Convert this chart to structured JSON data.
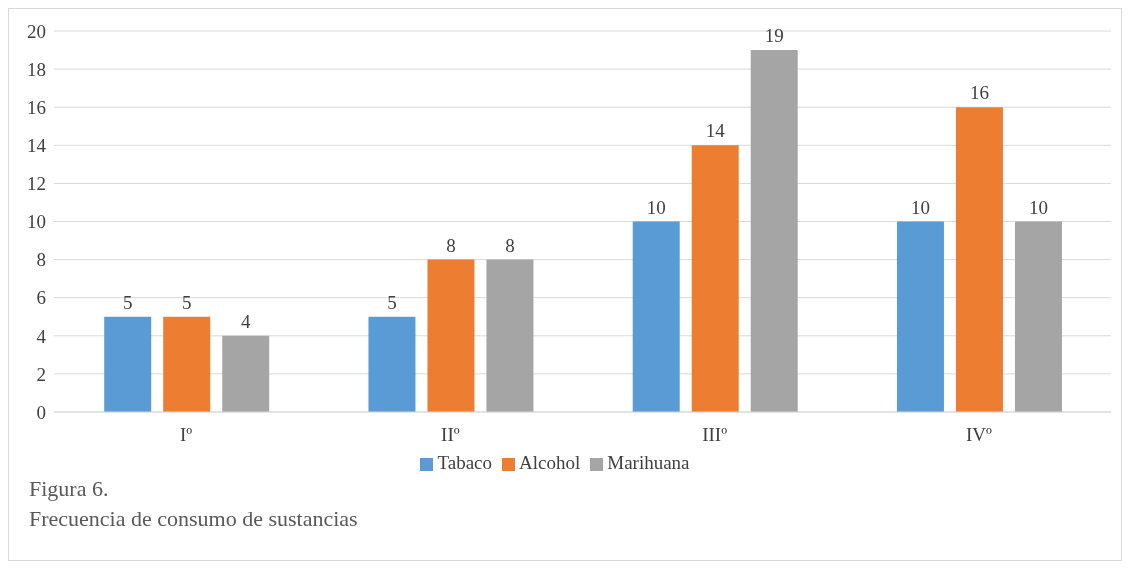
{
  "chart_data": {
    "type": "bar",
    "categories": [
      "Iº",
      "IIº",
      "IIIº",
      "IVº"
    ],
    "series": [
      {
        "name": "Tabaco",
        "color": "#5b9bd5",
        "values": [
          5,
          5,
          10,
          10
        ]
      },
      {
        "name": "Alcohol",
        "color": "#ed7d31",
        "values": [
          5,
          8,
          14,
          16
        ]
      },
      {
        "name": "Marihuana",
        "color": "#a5a5a5",
        "values": [
          4,
          8,
          19,
          10
        ]
      }
    ],
    "ylim": [
      0,
      20
    ],
    "yticks": [
      0,
      2,
      4,
      6,
      8,
      10,
      12,
      14,
      16,
      18,
      20
    ],
    "grid": "y",
    "legend": "bottom",
    "data_labels": true,
    "annotations": [
      "Figura 6.",
      "Frecuencia de consumo de sustancias"
    ]
  }
}
